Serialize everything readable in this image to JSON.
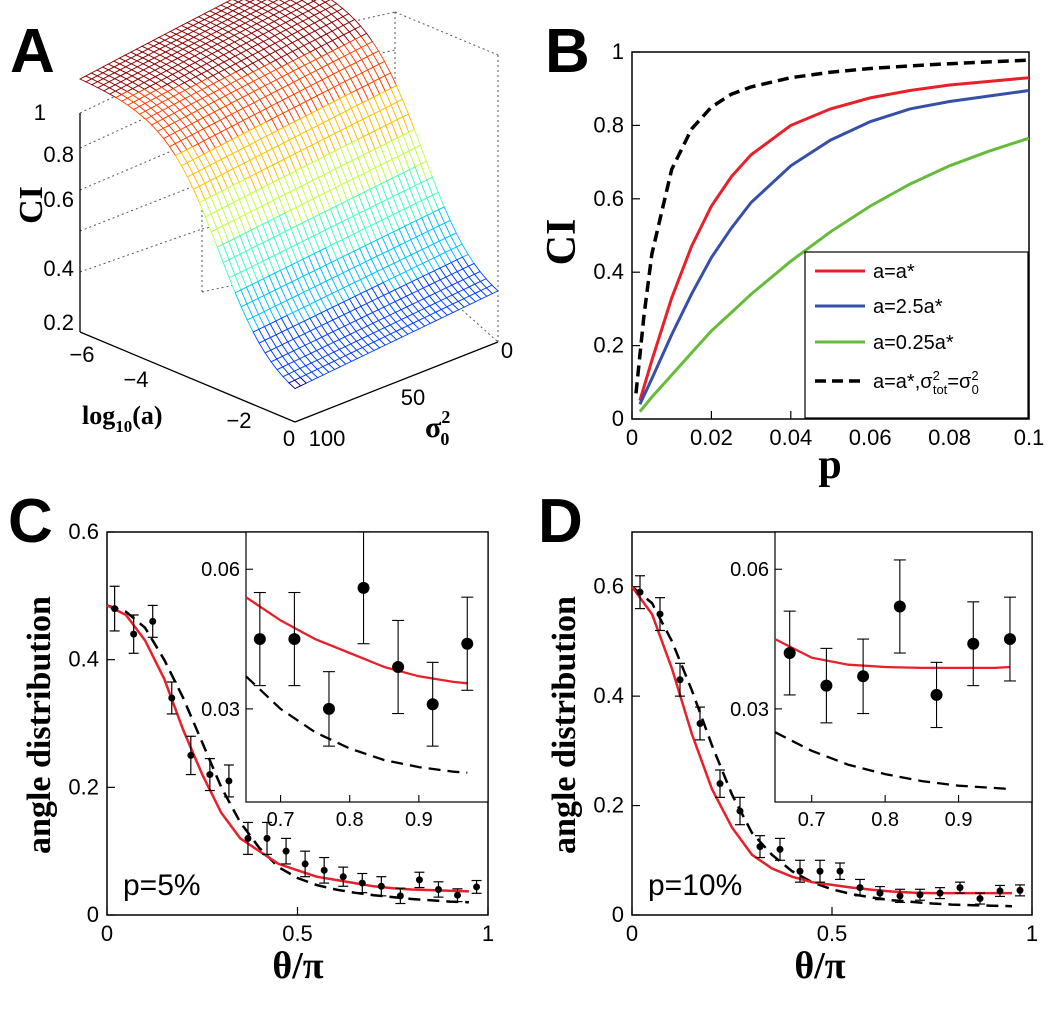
{
  "chart_data": [
    {
      "panel": "A",
      "type": "surface",
      "zlabel": "CI",
      "xlabel": "log10(a)",
      "ylabel": "σ0^2",
      "xlabel_main": "log",
      "xlabel_sub": "10",
      "xlabel_tail": "(a)",
      "ylabel_main": "σ",
      "ylabel_sup": "2",
      "ylabel_sub": "0",
      "zticks": [
        "0.2",
        "0.4",
        "0.6",
        "0.8",
        "1"
      ],
      "xticks": [
        "−6",
        "−4",
        "−2",
        "0"
      ],
      "yticks": [
        "100",
        "50",
        "0"
      ],
      "xlim": [
        -6,
        0
      ],
      "ylim": [
        0,
        100
      ],
      "zlim": [
        0.2,
        1
      ],
      "colormap": [
        "#00008f",
        "#0040ff",
        "#00c0ff",
        "#40ffbf",
        "#c0ff40",
        "#ffc000",
        "#ff4000",
        "#8f0000"
      ]
    },
    {
      "panel": "B",
      "type": "line",
      "xlabel": "p",
      "ylabel": "CI",
      "xlim": [
        0,
        0.1
      ],
      "ylim": [
        0,
        1
      ],
      "xticks": [
        "0",
        "0.02",
        "0.04",
        "0.06",
        "0.08",
        "0.1"
      ],
      "yticks": [
        "0",
        "0.2",
        "0.4",
        "0.6",
        "0.8",
        "1"
      ],
      "legend_position": "bottom-right",
      "series": [
        {
          "name": "a=a*",
          "color": "#e8202a",
          "dash": "solid",
          "x": [
            0.002,
            0.005,
            0.01,
            0.015,
            0.02,
            0.025,
            0.03,
            0.04,
            0.05,
            0.06,
            0.07,
            0.08,
            0.09,
            0.1
          ],
          "y": [
            0.05,
            0.16,
            0.33,
            0.47,
            0.58,
            0.66,
            0.72,
            0.8,
            0.845,
            0.875,
            0.895,
            0.91,
            0.92,
            0.93
          ]
        },
        {
          "name": "a=2.5a*",
          "color": "#3650a8",
          "dash": "solid",
          "x": [
            0.002,
            0.005,
            0.01,
            0.015,
            0.02,
            0.025,
            0.03,
            0.04,
            0.05,
            0.06,
            0.07,
            0.08,
            0.09,
            0.1
          ],
          "y": [
            0.04,
            0.11,
            0.23,
            0.34,
            0.44,
            0.52,
            0.59,
            0.69,
            0.76,
            0.81,
            0.845,
            0.865,
            0.88,
            0.895
          ]
        },
        {
          "name": "a=0.25a*",
          "color": "#66bb3a",
          "dash": "solid",
          "x": [
            0.002,
            0.005,
            0.01,
            0.015,
            0.02,
            0.025,
            0.03,
            0.04,
            0.05,
            0.06,
            0.07,
            0.08,
            0.09,
            0.1
          ],
          "y": [
            0.02,
            0.06,
            0.12,
            0.18,
            0.24,
            0.29,
            0.34,
            0.43,
            0.51,
            0.58,
            0.64,
            0.69,
            0.73,
            0.765
          ]
        },
        {
          "name": "a=a*,σ_tot^2=σ_0^2",
          "color": "#000000",
          "dash": "dashed",
          "x": [
            0.001,
            0.003,
            0.005,
            0.01,
            0.015,
            0.02,
            0.025,
            0.03,
            0.04,
            0.05,
            0.06,
            0.07,
            0.08,
            0.09,
            0.1
          ],
          "y": [
            0.07,
            0.28,
            0.45,
            0.68,
            0.79,
            0.85,
            0.885,
            0.905,
            0.93,
            0.945,
            0.955,
            0.962,
            0.968,
            0.973,
            0.978
          ]
        }
      ],
      "legend": [
        {
          "label": "a=a*"
        },
        {
          "label": "a=2.5a*"
        },
        {
          "label": "a=0.25a*"
        },
        {
          "label_main": "a=a*,σ",
          "label_sup1": "2",
          "label_sub1": "tot",
          "label_mid": "=σ",
          "label_sup2": "2",
          "label_sub2": "0"
        }
      ]
    },
    {
      "panel": "C",
      "type": "line",
      "xlabel": "θ/π",
      "ylabel": "angle distribution",
      "annotation": "p=5%",
      "xlim": [
        0,
        1
      ],
      "ylim": [
        0,
        0.6
      ],
      "xticks": [
        "0",
        "0.5",
        "1"
      ],
      "yticks": [
        "0",
        "0.2",
        "0.4",
        "0.6"
      ],
      "red_fit": {
        "x": [
          0,
          0.05,
          0.1,
          0.15,
          0.2,
          0.25,
          0.3,
          0.35,
          0.4,
          0.45,
          0.5,
          0.55,
          0.6,
          0.65,
          0.7,
          0.75,
          0.8,
          0.85,
          0.9,
          0.95
        ],
        "y": [
          0.485,
          0.47,
          0.43,
          0.37,
          0.29,
          0.22,
          0.16,
          0.12,
          0.1,
          0.08,
          0.07,
          0.06,
          0.055,
          0.05,
          0.045,
          0.042,
          0.04,
          0.039,
          0.038,
          0.037
        ]
      },
      "dashed_model": {
        "x": [
          0,
          0.05,
          0.1,
          0.15,
          0.2,
          0.25,
          0.3,
          0.35,
          0.4,
          0.45,
          0.5,
          0.55,
          0.6,
          0.65,
          0.7,
          0.75,
          0.8,
          0.85,
          0.9,
          0.95
        ],
        "y": [
          0.485,
          0.475,
          0.45,
          0.4,
          0.34,
          0.27,
          0.2,
          0.145,
          0.105,
          0.075,
          0.058,
          0.047,
          0.04,
          0.035,
          0.031,
          0.028,
          0.025,
          0.023,
          0.021,
          0.02
        ]
      },
      "points": {
        "x": [
          0.02,
          0.07,
          0.12,
          0.17,
          0.22,
          0.27,
          0.32,
          0.37,
          0.42,
          0.47,
          0.52,
          0.57,
          0.62,
          0.67,
          0.72,
          0.77,
          0.82,
          0.87,
          0.92,
          0.97
        ],
        "y": [
          0.48,
          0.44,
          0.46,
          0.34,
          0.25,
          0.22,
          0.21,
          0.12,
          0.12,
          0.1,
          0.08,
          0.07,
          0.06,
          0.05,
          0.045,
          0.03,
          0.055,
          0.04,
          0.031,
          0.044
        ],
        "err": [
          0.035,
          0.03,
          0.025,
          0.025,
          0.03,
          0.025,
          0.025,
          0.025,
          0.025,
          0.02,
          0.02,
          0.02,
          0.015,
          0.015,
          0.015,
          0.012,
          0.012,
          0.012,
          0.01,
          0.01
        ]
      },
      "inset": {
        "xlim": [
          0.65,
          1
        ],
        "ylim": [
          0.01,
          0.068
        ],
        "xticks": [
          "0.7",
          "0.8",
          "0.9"
        ],
        "yticks": [
          "0.03",
          "0.06"
        ],
        "points": {
          "x": [
            0.67,
            0.72,
            0.77,
            0.82,
            0.87,
            0.92,
            0.97
          ],
          "y": [
            0.045,
            0.045,
            0.03,
            0.056,
            0.039,
            0.031,
            0.044
          ],
          "err": [
            0.01,
            0.01,
            0.008,
            0.012,
            0.01,
            0.009,
            0.01
          ]
        },
        "red_fit": {
          "x": [
            0.65,
            0.7,
            0.75,
            0.8,
            0.85,
            0.9,
            0.95,
            0.97
          ],
          "y": [
            0.054,
            0.049,
            0.045,
            0.042,
            0.039,
            0.037,
            0.0358,
            0.0355
          ]
        },
        "dashed_model": {
          "x": [
            0.65,
            0.7,
            0.75,
            0.8,
            0.85,
            0.9,
            0.95,
            0.97
          ],
          "y": [
            0.037,
            0.03,
            0.025,
            0.0215,
            0.019,
            0.0175,
            0.0165,
            0.0163
          ]
        }
      }
    },
    {
      "panel": "D",
      "type": "line",
      "xlabel": "θ/π",
      "ylabel": "angle distribution",
      "annotation": "p=10%",
      "xlim": [
        0,
        1
      ],
      "ylim": [
        0,
        0.7
      ],
      "xticks": [
        "0",
        "0.5",
        "1"
      ],
      "yticks": [
        "0",
        "0.2",
        "0.4",
        "0.6"
      ],
      "red_fit": {
        "x": [
          0,
          0.05,
          0.1,
          0.15,
          0.2,
          0.25,
          0.3,
          0.35,
          0.4,
          0.45,
          0.5,
          0.55,
          0.6,
          0.65,
          0.7,
          0.75,
          0.8,
          0.85,
          0.9,
          0.95
        ],
        "y": [
          0.6,
          0.55,
          0.45,
          0.33,
          0.23,
          0.16,
          0.11,
          0.085,
          0.07,
          0.06,
          0.055,
          0.05,
          0.046,
          0.043,
          0.041,
          0.04,
          0.04,
          0.04,
          0.04,
          0.04
        ]
      },
      "dashed_model": {
        "x": [
          0,
          0.05,
          0.1,
          0.15,
          0.2,
          0.25,
          0.3,
          0.35,
          0.4,
          0.45,
          0.5,
          0.55,
          0.6,
          0.65,
          0.7,
          0.75,
          0.8,
          0.85,
          0.9,
          0.95
        ],
        "y": [
          0.6,
          0.57,
          0.5,
          0.41,
          0.31,
          0.22,
          0.15,
          0.11,
          0.08,
          0.06,
          0.047,
          0.038,
          0.032,
          0.027,
          0.024,
          0.021,
          0.019,
          0.018,
          0.017,
          0.016
        ]
      },
      "points": {
        "x": [
          0.02,
          0.07,
          0.12,
          0.17,
          0.22,
          0.27,
          0.32,
          0.37,
          0.42,
          0.47,
          0.52,
          0.57,
          0.62,
          0.67,
          0.72,
          0.77,
          0.82,
          0.87,
          0.92,
          0.97
        ],
        "y": [
          0.59,
          0.55,
          0.43,
          0.35,
          0.24,
          0.19,
          0.125,
          0.12,
          0.08,
          0.08,
          0.08,
          0.05,
          0.04,
          0.035,
          0.037,
          0.04,
          0.05,
          0.03,
          0.044,
          0.045
        ],
        "err": [
          0.03,
          0.03,
          0.03,
          0.03,
          0.025,
          0.025,
          0.02,
          0.02,
          0.02,
          0.02,
          0.015,
          0.015,
          0.012,
          0.012,
          0.01,
          0.01,
          0.01,
          0.01,
          0.01,
          0.01
        ]
      },
      "inset": {
        "xlim": [
          0.65,
          1
        ],
        "ylim": [
          0.01,
          0.068
        ],
        "xticks": [
          "0.7",
          "0.8",
          "0.9"
        ],
        "yticks": [
          "0.03",
          "0.06"
        ],
        "points": {
          "x": [
            0.67,
            0.72,
            0.77,
            0.82,
            0.87,
            0.92,
            0.97
          ],
          "y": [
            0.042,
            0.035,
            0.037,
            0.052,
            0.033,
            0.044,
            0.045
          ],
          "err": [
            0.009,
            0.008,
            0.008,
            0.01,
            0.007,
            0.009,
            0.009
          ]
        },
        "red_fit": {
          "x": [
            0.65,
            0.7,
            0.75,
            0.8,
            0.85,
            0.9,
            0.95,
            0.97
          ],
          "y": [
            0.045,
            0.041,
            0.0395,
            0.039,
            0.0388,
            0.0388,
            0.0388,
            0.039
          ]
        },
        "dashed_model": {
          "x": [
            0.65,
            0.7,
            0.75,
            0.8,
            0.85,
            0.9,
            0.95,
            0.97
          ],
          "y": [
            0.025,
            0.021,
            0.018,
            0.016,
            0.0145,
            0.0135,
            0.013,
            0.0128
          ]
        }
      }
    }
  ],
  "panels": {
    "A": "A",
    "B": "B",
    "C": "C",
    "D": "D"
  }
}
